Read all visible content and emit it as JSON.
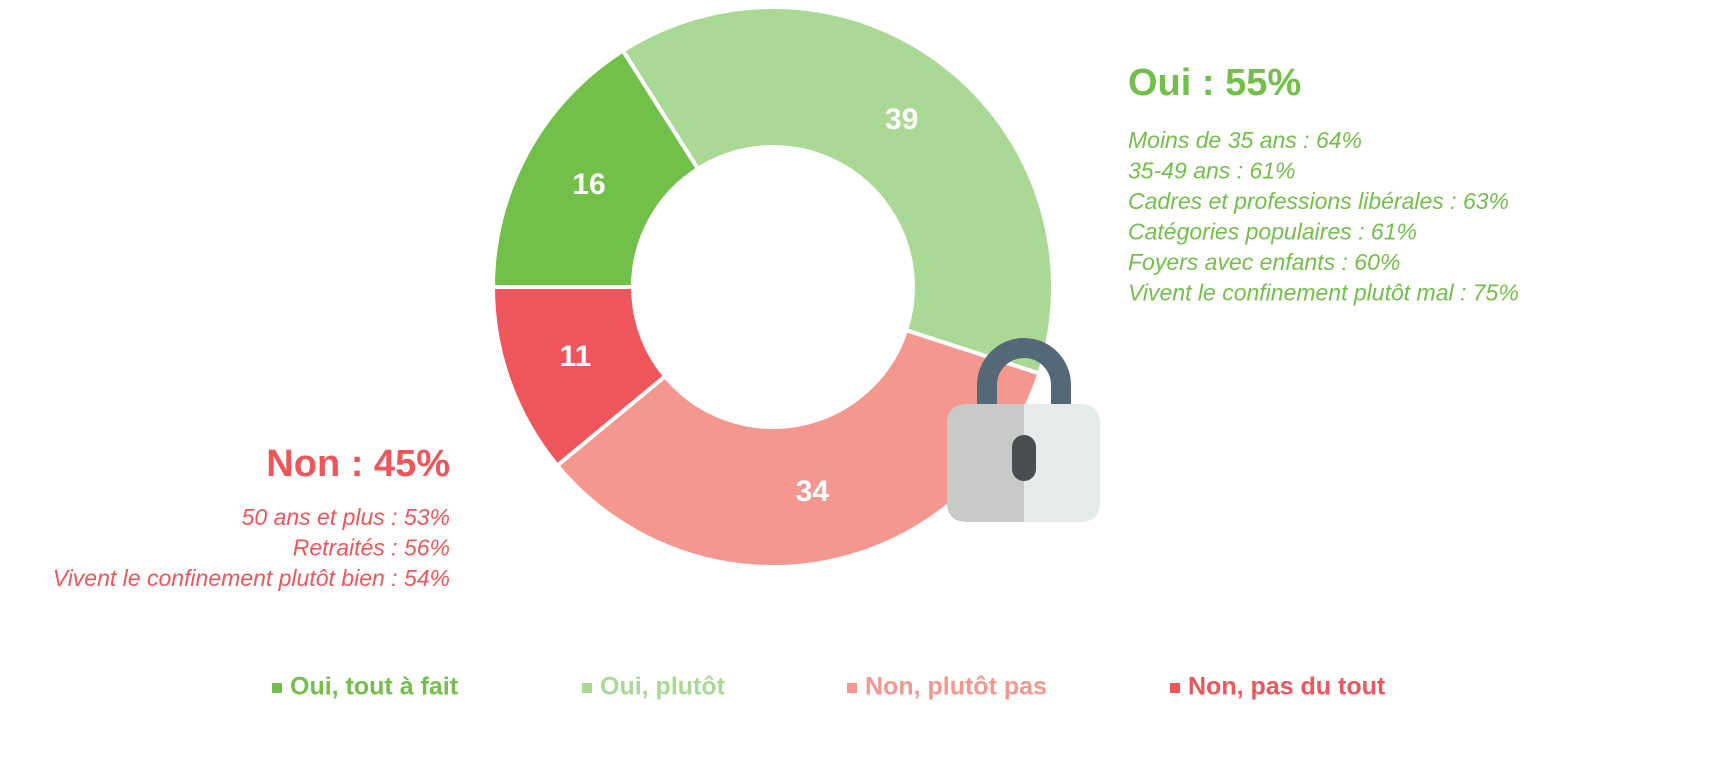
{
  "chart_data": {
    "type": "donut",
    "categories": [
      "Oui, tout à fait",
      "Oui, plutôt",
      "Non, plutôt pas",
      "Non, pas du tout"
    ],
    "values": [
      16,
      39,
      34,
      11
    ],
    "colors": [
      "#72bf4a",
      "#a9d994",
      "#f4978e",
      "#ef565b"
    ],
    "annotations": [
      {
        "title": "Oui : 55%",
        "color": "#72bf4a",
        "lines": [
          "Moins de 35 ans : 64%",
          "35-49 ans : 61%",
          "Cadres et professions libérales : 63%",
          "Catégories populaires : 61%",
          "Foyers avec enfants : 60%",
          "Vivent le confinement plutôt mal : 75%"
        ]
      },
      {
        "title": "Non : 45%",
        "color": "#ef565b",
        "lines": [
          "50 ans et plus : 53%",
          "Retraités : 56%",
          "Vivent le confinement plutôt bien : 54%"
        ]
      }
    ]
  }
}
